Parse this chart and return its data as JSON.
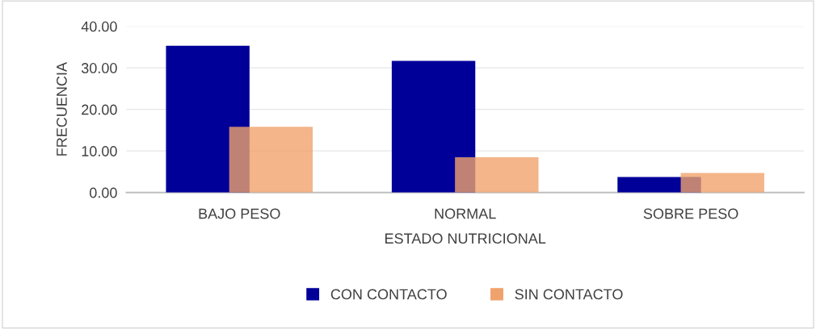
{
  "chart_data": {
    "type": "bar",
    "xlabel": "ESTADO NUTRICIONAL",
    "ylabel": "FRECUENCIA",
    "categories": [
      "BAJO PESO",
      "NORMAL",
      "SOBRE PESO"
    ],
    "series": [
      {
        "name": "CON CONTACTO",
        "color": "#000099",
        "values": [
          35.3,
          31.7,
          3.7
        ]
      },
      {
        "name": "SIN CONTACTO",
        "color": "#f0a26c",
        "values": [
          15.8,
          8.5,
          4.7
        ]
      }
    ],
    "ylim": [
      0,
      40
    ],
    "yticks": [
      {
        "value": 0,
        "label": "0.00"
      },
      {
        "value": 10,
        "label": "10.00"
      },
      {
        "value": 20,
        "label": "20.00"
      },
      {
        "value": 30,
        "label": "30.00"
      },
      {
        "value": 40,
        "label": "40.00"
      }
    ],
    "grid": "y",
    "legend": "bottom"
  }
}
